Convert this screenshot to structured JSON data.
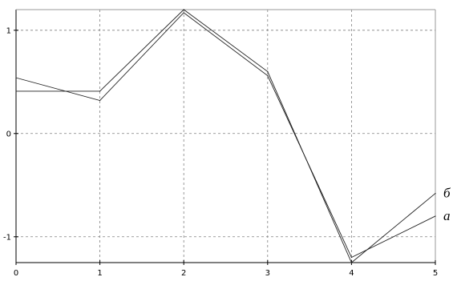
{
  "chart_data": {
    "type": "line",
    "x": [
      0,
      1,
      2,
      3,
      4,
      5
    ],
    "xlim": [
      0,
      5
    ],
    "ylim": [
      -1.25,
      1.2
    ],
    "x_ticks": [
      "0",
      "1",
      "2",
      "3",
      "4",
      "5"
    ],
    "y_ticks": [
      {
        "value": 1,
        "label": "1"
      },
      {
        "value": 0,
        "label": "0"
      },
      {
        "value": -1,
        "label": "-1"
      }
    ],
    "grid": true,
    "series": [
      {
        "name": "б",
        "values": [
          0.41,
          0.41,
          1.2,
          0.6,
          -1.25,
          -0.58
        ]
      },
      {
        "name": "а",
        "values": [
          0.54,
          0.32,
          1.17,
          0.56,
          -1.2,
          -0.8
        ]
      }
    ],
    "colors": {
      "line": "#222222",
      "grid": "#808080",
      "axis": "#000000",
      "background": "#ffffff"
    }
  }
}
